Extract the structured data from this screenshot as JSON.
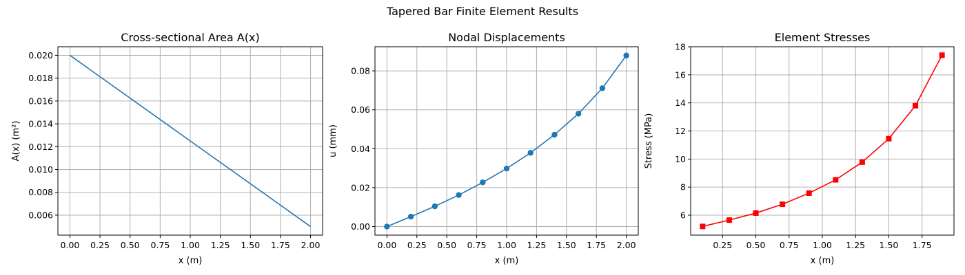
{
  "figure": {
    "title": "Tapered Bar Finite Element Results"
  },
  "chart_data": [
    {
      "type": "line",
      "title": "Cross-sectional Area A(x)",
      "xlabel": "x (m)",
      "ylabel": "A(x) (m²)",
      "xlim": [
        -0.1,
        2.1
      ],
      "ylim": [
        0.00425,
        0.02075
      ],
      "grid": true,
      "xticks": [
        0.0,
        0.25,
        0.5,
        0.75,
        1.0,
        1.25,
        1.5,
        1.75,
        2.0
      ],
      "xtick_labels": [
        "0.00",
        "0.25",
        "0.50",
        "0.75",
        "1.00",
        "1.25",
        "1.50",
        "1.75",
        "2.00"
      ],
      "yticks": [
        0.006,
        0.008,
        0.01,
        0.012,
        0.014,
        0.016,
        0.018,
        0.02
      ],
      "ytick_labels": [
        "0.006",
        "0.008",
        "0.010",
        "0.012",
        "0.014",
        "0.016",
        "0.018",
        "0.020"
      ],
      "series": [
        {
          "color": "#1f77b4",
          "marker": "none",
          "x": [
            0.0,
            2.0
          ],
          "y": [
            0.02,
            0.005
          ]
        }
      ]
    },
    {
      "type": "line",
      "title": "Nodal Displacements",
      "xlabel": "x (m)",
      "ylabel": "u (mm)",
      "xlim": [
        -0.1,
        2.1
      ],
      "ylim": [
        -0.0044,
        0.0924
      ],
      "grid": true,
      "xticks": [
        0.0,
        0.25,
        0.5,
        0.75,
        1.0,
        1.25,
        1.5,
        1.75,
        2.0
      ],
      "xtick_labels": [
        "0.00",
        "0.25",
        "0.50",
        "0.75",
        "1.00",
        "1.25",
        "1.50",
        "1.75",
        "2.00"
      ],
      "yticks": [
        0.0,
        0.02,
        0.04,
        0.06,
        0.08
      ],
      "ytick_labels": [
        "0.00",
        "0.02",
        "0.04",
        "0.06",
        "0.08"
      ],
      "series": [
        {
          "color": "#1f77b4",
          "marker": "circle",
          "x": [
            0.0,
            0.2,
            0.4,
            0.6,
            0.8,
            1.0,
            1.2,
            1.4,
            1.6,
            1.8,
            2.0
          ],
          "y": [
            0.0,
            0.0051,
            0.0104,
            0.0162,
            0.0227,
            0.0298,
            0.0379,
            0.0472,
            0.058,
            0.0711,
            0.0879
          ]
        }
      ]
    },
    {
      "type": "line",
      "title": "Element Stresses",
      "xlabel": "x (m)",
      "ylabel": "Stress (MPa)",
      "xlim": [
        0.01,
        1.99
      ],
      "ylim": [
        4.58,
        18.0
      ],
      "grid": true,
      "xticks": [
        0.25,
        0.5,
        0.75,
        1.0,
        1.25,
        1.5,
        1.75
      ],
      "xtick_labels": [
        "0.25",
        "0.50",
        "0.75",
        "1.00",
        "1.25",
        "1.50",
        "1.75"
      ],
      "yticks": [
        6,
        8,
        10,
        12,
        14,
        16,
        18
      ],
      "ytick_labels": [
        "6",
        "8",
        "10",
        "12",
        "14",
        "16",
        "18"
      ],
      "series": [
        {
          "color": "#ff0000",
          "marker": "square",
          "x": [
            0.1,
            0.3,
            0.5,
            0.7,
            0.9,
            1.1,
            1.3,
            1.5,
            1.7,
            1.9
          ],
          "y": [
            5.2,
            5.65,
            6.15,
            6.78,
            7.57,
            8.52,
            9.78,
            11.45,
            13.8,
            17.4
          ]
        }
      ]
    }
  ]
}
